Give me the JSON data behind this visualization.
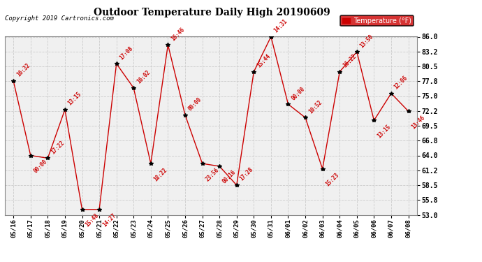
{
  "title": "Outdoor Temperature Daily High 20190609",
  "copyright": "Copyright 2019 Cartronics.com",
  "legend_label": "Temperature (°F)",
  "background_color": "#ffffff",
  "plot_bg_color": "#f0f0f0",
  "line_color": "#cc0000",
  "marker_color": "#000000",
  "label_color": "#cc0000",
  "grid_color": "#cccccc",
  "ylim": [
    53.0,
    86.0
  ],
  "yticks": [
    53.0,
    55.8,
    58.5,
    61.2,
    64.0,
    66.8,
    69.5,
    72.2,
    75.0,
    77.8,
    80.5,
    83.2,
    86.0
  ],
  "dates": [
    "05/16",
    "05/17",
    "05/18",
    "05/19",
    "05/20",
    "05/21",
    "05/22",
    "05/23",
    "05/24",
    "05/25",
    "05/26",
    "05/27",
    "05/28",
    "05/29",
    "05/30",
    "05/31",
    "06/01",
    "06/02",
    "06/03",
    "06/04",
    "06/05",
    "06/06",
    "06/07",
    "06/08"
  ],
  "temperatures": [
    77.8,
    64.0,
    63.5,
    72.5,
    54.0,
    54.0,
    81.0,
    76.5,
    62.5,
    84.5,
    71.5,
    62.5,
    62.0,
    58.5,
    79.5,
    86.0,
    73.5,
    71.0,
    61.5,
    79.5,
    83.2,
    70.5,
    75.5,
    72.2
  ],
  "time_labels": [
    "16:32",
    "00:00",
    "17:22",
    "13:15",
    "15:48",
    "14:27",
    "17:08",
    "16:02",
    "18:22",
    "16:46",
    "00:00",
    "23:56",
    "00:16",
    "17:28",
    "15:44",
    "14:31",
    "00:00",
    "10:52",
    "15:23",
    "16:22",
    "13:50",
    "13:15",
    "12:06",
    "13:46"
  ],
  "label_above": [
    true,
    false,
    true,
    true,
    false,
    false,
    true,
    true,
    false,
    true,
    true,
    false,
    false,
    true,
    true,
    true,
    true,
    true,
    false,
    true,
    true,
    false,
    true,
    false
  ]
}
